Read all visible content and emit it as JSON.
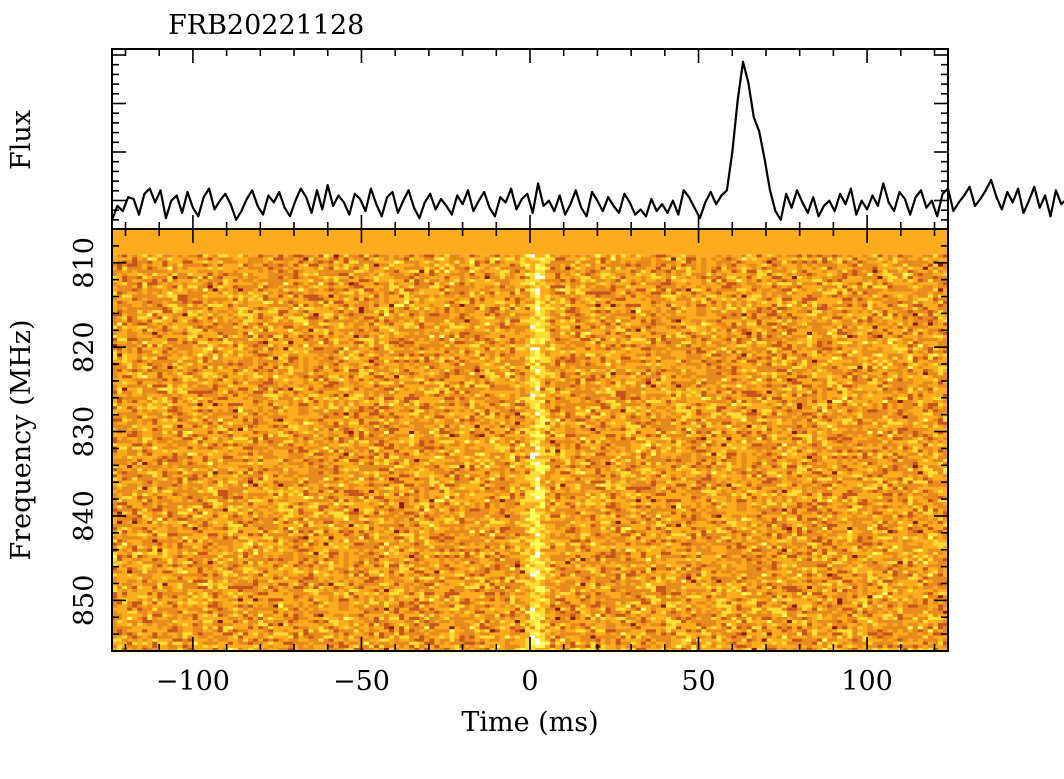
{
  "chart_data": [
    {
      "panel": "flux",
      "type": "line",
      "title": "FRB20221128",
      "ylabel": "Flux",
      "xlim": [
        -124,
        124
      ],
      "x_step_ms": 1.6,
      "baseline": 0.0,
      "y_ticks_labelled": false,
      "series": [
        {
          "values": [
            0.05,
            0.45,
            0.3,
            0.7,
            0.65,
            0.2,
            0.8,
            0.95,
            0.55,
            0.9,
            0.1,
            0.6,
            0.75,
            0.25,
            0.85,
            0.4,
            0.15,
            0.7,
            0.95,
            0.35,
            0.6,
            0.8,
            0.5,
            0.05,
            0.3,
            0.65,
            0.9,
            0.45,
            0.2,
            0.75,
            0.55,
            0.85,
            0.4,
            0.15,
            0.6,
            0.95,
            0.7,
            0.25,
            0.9,
            0.35,
            1.05,
            0.45,
            0.75,
            0.55,
            0.2,
            0.8,
            0.65,
            0.3,
            0.95,
            0.5,
            0.15,
            0.7,
            0.85,
            0.25,
            0.6,
            0.9,
            0.4,
            0.1,
            0.55,
            0.8,
            0.35,
            0.65,
            0.45,
            0.2,
            0.75,
            0.5,
            0.9,
            0.3,
            0.6,
            0.85,
            0.4,
            0.15,
            0.7,
            0.55,
            0.95,
            0.35,
            0.65,
            0.8,
            0.25,
            1.1,
            0.45,
            0.6,
            0.3,
            0.75,
            0.2,
            0.5,
            0.9,
            0.4,
            0.15,
            0.85,
            0.6,
            0.3,
            0.7,
            0.45,
            0.25,
            0.8,
            0.55,
            0.2,
            0.35,
            0.15,
            0.65,
            0.3,
            0.5,
            0.25,
            0.6,
            0.2,
            0.9,
            0.7,
            0.4,
            0.1,
            0.55,
            0.85,
            0.5,
            0.75,
            0.9,
            2.0,
            3.5,
            4.6,
            4.0,
            3.0,
            2.6,
            1.8,
            0.9,
            0.3,
            0.05,
            0.8,
            0.4,
            0.9,
            0.55,
            0.25,
            0.7,
            0.15,
            0.45,
            0.6,
            0.3,
            0.8,
            0.5,
            0.95,
            0.2,
            0.6,
            0.35,
            0.75,
            0.45,
            1.1,
            0.55,
            0.3,
            0.85,
            0.65,
            0.2,
            0.7,
            0.9,
            0.4,
            0.6,
            0.15,
            0.8,
            0.95,
            0.3,
            0.55,
            0.75,
            1.0,
            0.45,
            0.65,
            0.9,
            1.2,
            0.7,
            0.35,
            0.85,
            0.55,
            0.95,
            0.25,
            0.6,
            1.0,
            0.4,
            0.75,
            0.15,
            0.9,
            0.5,
            0.65,
            0.3,
            0.8,
            0.55,
            0.7,
            0.35,
            0.95,
            0.45,
            0.2,
            0.85,
            0.6,
            0.5,
            0.75,
            0.25,
            0.9,
            0.4,
            0.65,
            0.3,
            0.8,
            0.15,
            0.55,
            0.7,
            0.45,
            0.95,
            0.35,
            0.6,
            1.0,
            0.25,
            0.85,
            0.5,
            0.3,
            0.75,
            0.1,
            0.65,
            0.45,
            0.9,
            0.4,
            0.55,
            0.2,
            0.7,
            0.35,
            0.6,
            0.5,
            0.25,
            0.8,
            0.45,
            0.3,
            0.65,
            0.4,
            0.55,
            0.2,
            0.7,
            0.15,
            0.5,
            0.6,
            0.35,
            0.05,
            0.45,
            0.25,
            0.65,
            0.3,
            0.1,
            0.55,
            0.2,
            0.75,
            0.85
          ]
        }
      ]
    },
    {
      "panel": "dynamic-spectrum",
      "type": "heatmap",
      "xlabel": "Time (ms)",
      "ylabel": "Frequency (MHz)",
      "xlim": [
        -124,
        124
      ],
      "ylim": [
        856,
        806
      ],
      "x_ticks": [
        -100,
        -50,
        0,
        50,
        100
      ],
      "x_tick_labels": [
        "−100",
        "−50",
        "0",
        "50",
        "100"
      ],
      "y_ticks": [
        810,
        820,
        830,
        840,
        850
      ],
      "y_tick_labels": [
        "810",
        "820",
        "830",
        "840",
        "850"
      ],
      "masked_band_mhz": [
        806,
        809
      ],
      "masked_color": "#fcac1c",
      "pulse_time_ms": 2,
      "colormap": [
        "#ffffff",
        "#ffff60",
        "#ffdd33",
        "#fcac1c",
        "#e88b1e",
        "#c8561c",
        "#8a1e10",
        "#2a0000"
      ]
    }
  ]
}
